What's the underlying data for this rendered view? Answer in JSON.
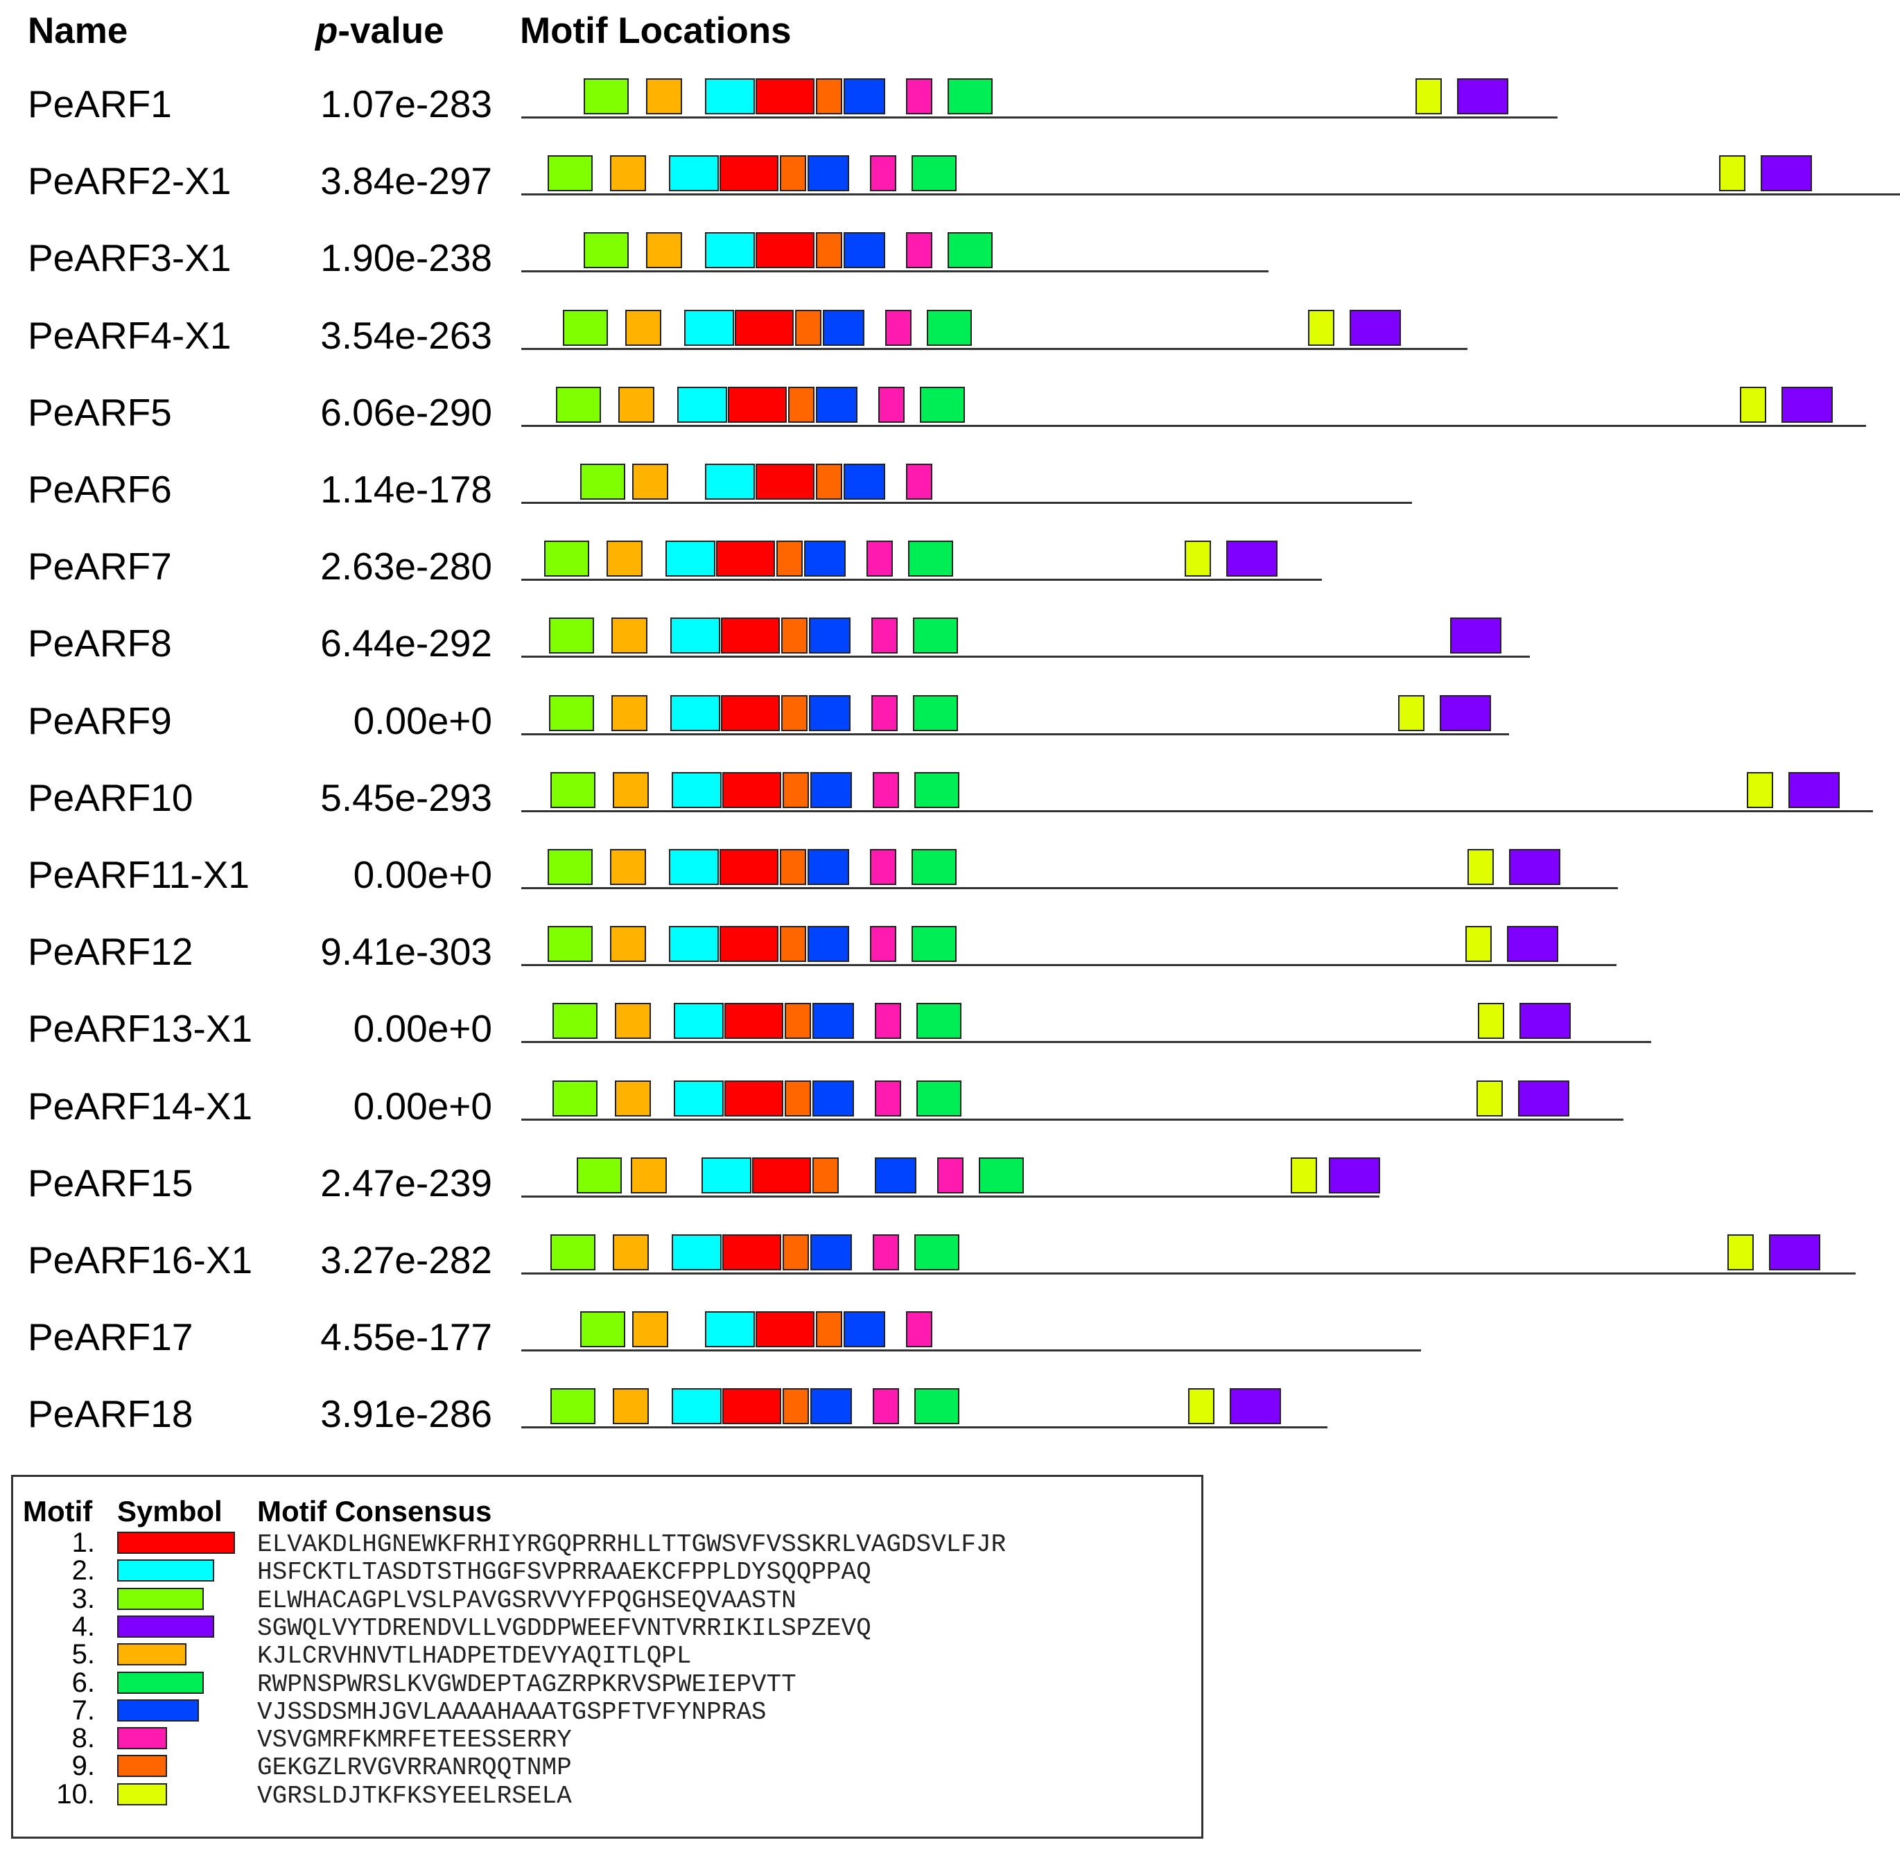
{
  "headers": {
    "name": "Name",
    "pvalue_p": "p",
    "pvalue_rest": "-value",
    "motif_locations": "Motif Locations"
  },
  "motif_colors": {
    "1": "#ff0000",
    "2": "#00ffff",
    "3": "#80ff00",
    "4": "#8000ff",
    "5": "#ffb300",
    "6": "#00ee55",
    "7": "#0044ff",
    "8": "#ff1ab0",
    "9": "#ff6600",
    "10": "#dfff00"
  },
  "sequences": [
    {
      "name": "PeARF1",
      "pvalue": "1.07e-283",
      "length": 1495,
      "motifs": [
        [
          3,
          90
        ],
        [
          5,
          180
        ],
        [
          2,
          265
        ],
        [
          1,
          338
        ],
        [
          9,
          425
        ],
        [
          7,
          465
        ],
        [
          8,
          555
        ],
        [
          6,
          615
        ],
        [
          10,
          1290
        ],
        [
          4,
          1350
        ]
      ]
    },
    {
      "name": "PeARF2-X1",
      "pvalue": "3.84e-297",
      "length": 2000,
      "motifs": [
        [
          3,
          38
        ],
        [
          5,
          128
        ],
        [
          2,
          213
        ],
        [
          1,
          286
        ],
        [
          9,
          373
        ],
        [
          7,
          413
        ],
        [
          8,
          503
        ],
        [
          6,
          563
        ],
        [
          10,
          1728
        ],
        [
          4,
          1788
        ]
      ]
    },
    {
      "name": "PeARF3-X1",
      "pvalue": "1.90e-238",
      "length": 1078,
      "motifs": [
        [
          3,
          90
        ],
        [
          5,
          180
        ],
        [
          2,
          265
        ],
        [
          1,
          338
        ],
        [
          9,
          425
        ],
        [
          7,
          465
        ],
        [
          8,
          555
        ],
        [
          6,
          615
        ]
      ]
    },
    {
      "name": "PeARF4-X1",
      "pvalue": "3.54e-263",
      "length": 1365,
      "motifs": [
        [
          3,
          60
        ],
        [
          5,
          150
        ],
        [
          2,
          235
        ],
        [
          1,
          308
        ],
        [
          9,
          395
        ],
        [
          7,
          435
        ],
        [
          8,
          525
        ],
        [
          6,
          585
        ],
        [
          10,
          1135
        ],
        [
          4,
          1195
        ]
      ]
    },
    {
      "name": "PeARF5",
      "pvalue": "6.06e-290",
      "length": 1940,
      "motifs": [
        [
          3,
          50
        ],
        [
          5,
          140
        ],
        [
          2,
          225
        ],
        [
          1,
          298
        ],
        [
          9,
          385
        ],
        [
          7,
          425
        ],
        [
          8,
          515
        ],
        [
          6,
          575
        ],
        [
          10,
          1758
        ],
        [
          4,
          1818
        ]
      ]
    },
    {
      "name": "PeARF6",
      "pvalue": "1.14e-178",
      "length": 1285,
      "motifs": [
        [
          3,
          85
        ],
        [
          5,
          160
        ],
        [
          2,
          265
        ],
        [
          1,
          338
        ],
        [
          9,
          425
        ],
        [
          7,
          465
        ],
        [
          8,
          555
        ]
      ]
    },
    {
      "name": "PeARF7",
      "pvalue": "2.63e-280",
      "length": 1155,
      "motifs": [
        [
          3,
          33
        ],
        [
          5,
          123
        ],
        [
          2,
          208
        ],
        [
          1,
          281
        ],
        [
          9,
          368
        ],
        [
          7,
          408
        ],
        [
          8,
          498
        ],
        [
          6,
          558
        ],
        [
          10,
          957
        ],
        [
          4,
          1017
        ]
      ]
    },
    {
      "name": "PeARF8",
      "pvalue": "6.44e-292",
      "length": 1455,
      "motifs": [
        [
          3,
          40
        ],
        [
          5,
          130
        ],
        [
          2,
          215
        ],
        [
          1,
          288
        ],
        [
          9,
          375
        ],
        [
          7,
          415
        ],
        [
          8,
          505
        ],
        [
          6,
          565
        ],
        [
          4,
          1340
        ]
      ]
    },
    {
      "name": "PeARF9",
      "pvalue": "0.00e+0",
      "length": 1425,
      "motifs": [
        [
          3,
          40
        ],
        [
          5,
          130
        ],
        [
          2,
          215
        ],
        [
          1,
          288
        ],
        [
          9,
          375
        ],
        [
          7,
          415
        ],
        [
          8,
          505
        ],
        [
          6,
          565
        ],
        [
          10,
          1265
        ],
        [
          4,
          1325
        ]
      ]
    },
    {
      "name": "PeARF10",
      "pvalue": "5.45e-293",
      "length": 1950,
      "motifs": [
        [
          3,
          42
        ],
        [
          5,
          132
        ],
        [
          2,
          217
        ],
        [
          1,
          290
        ],
        [
          9,
          377
        ],
        [
          7,
          417
        ],
        [
          8,
          507
        ],
        [
          6,
          567
        ],
        [
          10,
          1768
        ],
        [
          4,
          1828
        ]
      ]
    },
    {
      "name": "PeARF11-X1",
      "pvalue": "0.00e+0",
      "length": 1582,
      "motifs": [
        [
          3,
          38
        ],
        [
          5,
          128
        ],
        [
          2,
          213
        ],
        [
          1,
          286
        ],
        [
          9,
          373
        ],
        [
          7,
          413
        ],
        [
          8,
          503
        ],
        [
          6,
          563
        ],
        [
          10,
          1365
        ],
        [
          4,
          1425
        ]
      ]
    },
    {
      "name": "PeARF12",
      "pvalue": "9.41e-303",
      "length": 1580,
      "motifs": [
        [
          3,
          38
        ],
        [
          5,
          128
        ],
        [
          2,
          213
        ],
        [
          1,
          286
        ],
        [
          9,
          373
        ],
        [
          7,
          413
        ],
        [
          8,
          503
        ],
        [
          6,
          563
        ],
        [
          10,
          1362
        ],
        [
          4,
          1422
        ]
      ]
    },
    {
      "name": "PeARF13-X1",
      "pvalue": "0.00e+0",
      "length": 1630,
      "motifs": [
        [
          3,
          45
        ],
        [
          5,
          135
        ],
        [
          2,
          220
        ],
        [
          1,
          293
        ],
        [
          9,
          380
        ],
        [
          7,
          420
        ],
        [
          8,
          510
        ],
        [
          6,
          570
        ],
        [
          10,
          1380
        ],
        [
          4,
          1440
        ]
      ]
    },
    {
      "name": "PeARF14-X1",
      "pvalue": "0.00e+0",
      "length": 1590,
      "motifs": [
        [
          3,
          45
        ],
        [
          5,
          135
        ],
        [
          2,
          220
        ],
        [
          1,
          293
        ],
        [
          9,
          380
        ],
        [
          7,
          420
        ],
        [
          8,
          510
        ],
        [
          6,
          570
        ],
        [
          10,
          1378
        ],
        [
          4,
          1438
        ]
      ]
    },
    {
      "name": "PeARF15",
      "pvalue": "2.47e-239",
      "length": 1238,
      "motifs": [
        [
          3,
          80
        ],
        [
          5,
          158
        ],
        [
          2,
          260
        ],
        [
          1,
          333
        ],
        [
          9,
          420
        ],
        [
          7,
          510
        ],
        [
          8,
          600
        ],
        [
          6,
          660
        ],
        [
          10,
          1110
        ],
        [
          4,
          1165
        ]
      ]
    },
    {
      "name": "PeARF16-X1",
      "pvalue": "3.27e-282",
      "length": 1925,
      "motifs": [
        [
          3,
          42
        ],
        [
          5,
          132
        ],
        [
          2,
          217
        ],
        [
          1,
          290
        ],
        [
          9,
          377
        ],
        [
          7,
          417
        ],
        [
          8,
          507
        ],
        [
          6,
          567
        ],
        [
          10,
          1740
        ],
        [
          4,
          1800
        ]
      ]
    },
    {
      "name": "PeARF17",
      "pvalue": "4.55e-177",
      "length": 1298,
      "motifs": [
        [
          3,
          85
        ],
        [
          5,
          160
        ],
        [
          2,
          265
        ],
        [
          1,
          338
        ],
        [
          9,
          425
        ],
        [
          7,
          465
        ],
        [
          8,
          555
        ]
      ]
    },
    {
      "name": "PeARF18",
      "pvalue": "3.91e-286",
      "length": 1163,
      "motifs": [
        [
          3,
          42
        ],
        [
          5,
          132
        ],
        [
          2,
          217
        ],
        [
          1,
          290
        ],
        [
          9,
          377
        ],
        [
          7,
          417
        ],
        [
          8,
          507
        ],
        [
          6,
          567
        ],
        [
          10,
          962
        ],
        [
          4,
          1022
        ]
      ]
    }
  ],
  "legend": {
    "header_motif": "Motif",
    "header_symbol": "Symbol",
    "header_consensus": "Motif Consensus",
    "motifs": [
      {
        "num": "1.",
        "id": 1,
        "consensus": "ELVAKDLHGNEWKFRHIYRGQPRRHLLTTGWSVFVSSKRLVAGDSVLFJR"
      },
      {
        "num": "2.",
        "id": 2,
        "consensus": "HSFCKTLTASDTSTHGGFSVPRRAAEKCFPPLDYSQQPPAQ"
      },
      {
        "num": "3.",
        "id": 3,
        "consensus": "ELWHACAGPLVSLPAVGSRVVYFPQGHSEQVAASTN"
      },
      {
        "num": "4.",
        "id": 4,
        "consensus": "SGWQLVYTDRENDVLLVGDDPWEEFVNTVRRIKILSPZEVQ"
      },
      {
        "num": "5.",
        "id": 5,
        "consensus": "KJLCRVHNVTLHADPETDEVYAQITLQPL"
      },
      {
        "num": "6.",
        "id": 6,
        "consensus": "RWPNSPWRSLKVGWDEPTAGZRPKRVSPWEIEPVTT"
      },
      {
        "num": "7.",
        "id": 7,
        "consensus": "VJSSDSMHJGVLAAAAHAAATGSPFTVFYNPRAS"
      },
      {
        "num": "8.",
        "id": 8,
        "consensus": "VSVGMRFKMRFETEESSERRY"
      },
      {
        "num": "9.",
        "id": 9,
        "consensus": "GEKGZLRVGVRRANRQQTNMP"
      },
      {
        "num": "10.",
        "id": 10,
        "consensus": "VGRSLDJTKFKSYEELRSELA"
      }
    ]
  }
}
